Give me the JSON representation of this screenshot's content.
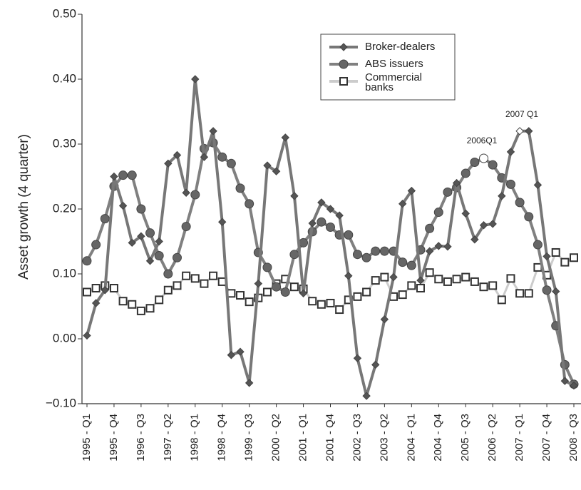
{
  "chart_data": {
    "type": "line",
    "y_label": "Asset growth (4 quarter)",
    "categories": [
      "1995 - Q1",
      null,
      null,
      "1995 - Q4",
      null,
      null,
      "1996 - Q3",
      null,
      null,
      "1997 - Q2",
      null,
      null,
      "1998 - Q1",
      null,
      null,
      "1998 - Q4",
      null,
      null,
      "1999 - Q3",
      null,
      null,
      "2000 - Q2",
      null,
      null,
      "2001 - Q1",
      null,
      null,
      "2001 - Q4",
      null,
      null,
      "2002 - Q3",
      null,
      null,
      "2003 - Q2",
      null,
      null,
      "2004 - Q1",
      null,
      null,
      "2004 - Q4",
      null,
      null,
      "2005 - Q3",
      null,
      null,
      "2006 - Q2",
      null,
      null,
      "2007 - Q1",
      null,
      null,
      "2007 - Q4",
      null,
      null,
      "2008 - Q3"
    ],
    "series": [
      {
        "name": "Broker-dealers",
        "color": "#777777",
        "marker": "diamond",
        "values": [
          0.005,
          0.055,
          0.075,
          0.25,
          0.205,
          0.148,
          0.158,
          0.12,
          0.15,
          0.27,
          0.283,
          0.225,
          0.4,
          0.28,
          0.32,
          0.18,
          -0.025,
          -0.02,
          -0.068,
          0.085,
          0.267,
          0.258,
          0.31,
          0.22,
          0.07,
          0.178,
          0.21,
          0.2,
          0.19,
          0.097,
          -0.03,
          -0.088,
          -0.04,
          0.03,
          0.095,
          0.208,
          0.228,
          0.09,
          0.135,
          0.143,
          0.142,
          0.24,
          0.193,
          0.153,
          0.175,
          0.177,
          0.22,
          0.288,
          0.32,
          0.32,
          0.237,
          0.127,
          0.073,
          -0.065,
          -0.072
        ]
      },
      {
        "name": "ABS issuers",
        "color": "#808080",
        "marker": "circle",
        "values": [
          0.12,
          0.145,
          0.185,
          0.235,
          0.252,
          0.252,
          0.2,
          0.163,
          0.128,
          0.1,
          0.125,
          0.173,
          0.222,
          0.293,
          0.302,
          0.28,
          0.27,
          0.232,
          0.208,
          0.133,
          0.11,
          0.08,
          0.072,
          0.13,
          0.148,
          0.165,
          0.18,
          0.172,
          0.16,
          0.16,
          0.13,
          0.125,
          0.135,
          0.135,
          0.135,
          0.118,
          0.113,
          0.137,
          0.17,
          0.195,
          0.226,
          0.233,
          0.255,
          0.272,
          0.278,
          0.268,
          0.248,
          0.238,
          0.21,
          0.188,
          0.145,
          0.075,
          0.02,
          -0.04,
          -0.07
        ]
      },
      {
        "name": "Commercial banks",
        "color": "#cccccc",
        "marker": "square",
        "values": [
          0.072,
          0.078,
          0.082,
          0.078,
          0.058,
          0.053,
          0.043,
          0.047,
          0.06,
          0.075,
          0.082,
          0.097,
          0.093,
          0.085,
          0.097,
          0.088,
          0.07,
          0.067,
          0.057,
          0.063,
          0.072,
          0.085,
          0.092,
          0.08,
          0.077,
          0.058,
          0.053,
          0.055,
          0.045,
          0.06,
          0.065,
          0.072,
          0.09,
          0.095,
          0.065,
          0.068,
          0.082,
          0.078,
          0.102,
          0.092,
          0.088,
          0.092,
          0.095,
          0.088,
          0.08,
          0.082,
          0.06,
          0.093,
          0.07,
          0.07,
          0.11,
          0.098,
          0.133,
          0.118,
          0.125
        ]
      }
    ],
    "annotations": [
      "2006Q1",
      "2007 Q1"
    ],
    "ylim": [
      -0.1,
      0.5
    ],
    "yticks": [
      {
        "value": -0.1,
        "label": "−0.10"
      },
      {
        "value": 0.0,
        "label": "0.00"
      },
      {
        "value": 0.1,
        "label": "0.10"
      },
      {
        "value": 0.2,
        "label": "0.20"
      },
      {
        "value": 0.3,
        "label": "0.30"
      },
      {
        "value": 0.4,
        "label": "0.40"
      },
      {
        "value": 0.5,
        "label": "0.50"
      }
    ],
    "legend": "upper right"
  }
}
